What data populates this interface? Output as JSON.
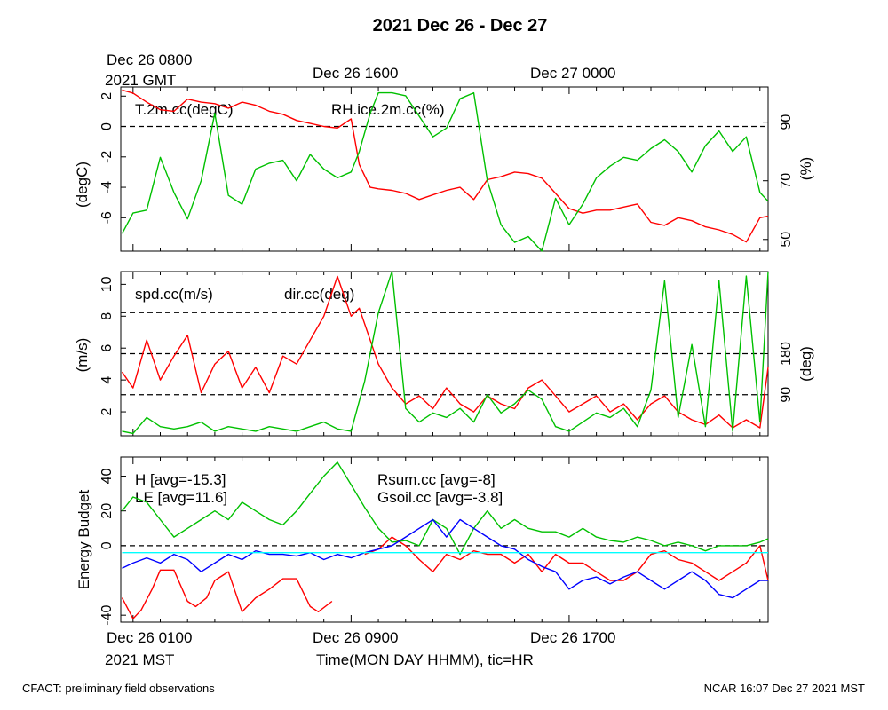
{
  "title": "2021 Dec 26 - Dec 27",
  "top_axis": {
    "labels": [
      "Dec 26 0800",
      "2021 GMT",
      "Dec 26 1600",
      "Dec 27 0000"
    ]
  },
  "bottom_axis": {
    "labels": [
      "Dec 26 0100",
      "2021 MST",
      "Dec 26 0900",
      "Dec 26 1700"
    ],
    "title": "Time(MON DAY HHMM), tic=HR",
    "x_range_hours": [
      0.55,
      24.3
    ]
  },
  "footer": {
    "left": "CFACT: preliminary field observations",
    "right": "NCAR 16:07 Dec 27 2021 MST"
  },
  "colors": {
    "red": "#ff0000",
    "green": "#00c000",
    "blue": "#0000ff",
    "cyan": "#00ffff"
  },
  "chart_data": [
    {
      "type": "line",
      "panel": "temperature-rh",
      "ylabel_left": "(degC)",
      "ylabel_right": "(%)",
      "ylim_left": [
        -8.2,
        2.6
      ],
      "ylim_right": [
        46,
        102
      ],
      "left_ticks": [
        "2",
        "0",
        "-2",
        "-4",
        "-6"
      ],
      "left_tick_values": [
        2,
        0,
        -2,
        -4,
        -6
      ],
      "right_ticks": [
        "90",
        "70",
        "50"
      ],
      "right_tick_values": [
        90,
        70,
        50
      ],
      "ref_line": 0,
      "series": [
        {
          "name": "T.2m.cc(degC)",
          "axis": "left",
          "color": "#ff0000",
          "x": [
            0.6,
            1.0,
            1.5,
            2.0,
            2.5,
            3.0,
            3.5,
            4.0,
            4.5,
            5.0,
            5.5,
            6.0,
            6.5,
            7.0,
            7.5,
            8.0,
            8.5,
            9.0,
            9.3,
            9.7,
            10.0,
            10.5,
            11.0,
            11.5,
            12.0,
            12.5,
            13.0,
            13.5,
            14.0,
            14.5,
            15.0,
            15.5,
            16.0,
            16.5,
            17.0,
            17.5,
            18.0,
            18.5,
            19.0,
            19.5,
            20.0,
            20.5,
            21.0,
            21.5,
            22.0,
            22.5,
            23.0,
            23.5,
            24.0,
            24.3
          ],
          "values": [
            2.4,
            2.2,
            1.6,
            1.1,
            1.0,
            1.8,
            1.6,
            1.5,
            1.2,
            1.6,
            1.4,
            1.0,
            0.8,
            0.4,
            0.2,
            0.0,
            -0.1,
            0.5,
            -2.5,
            -4.0,
            -4.1,
            -4.2,
            -4.4,
            -4.8,
            -4.5,
            -4.2,
            -4.0,
            -4.8,
            -3.5,
            -3.3,
            -3.0,
            -3.1,
            -3.4,
            -4.4,
            -5.4,
            -5.7,
            -5.5,
            -5.5,
            -5.3,
            -5.1,
            -6.3,
            -6.5,
            -6.0,
            -6.2,
            -6.6,
            -6.8,
            -7.1,
            -7.6,
            -6.0,
            -5.9
          ]
        },
        {
          "name": "RH.ice.2m.cc(%)",
          "axis": "right",
          "color": "#00c000",
          "x": [
            0.6,
            1.0,
            1.5,
            2.0,
            2.5,
            3.0,
            3.5,
            4.0,
            4.5,
            5.0,
            5.5,
            6.0,
            6.5,
            7.0,
            7.5,
            8.0,
            8.5,
            9.0,
            9.3,
            9.7,
            10.0,
            10.5,
            11.0,
            11.5,
            12.0,
            12.5,
            13.0,
            13.5,
            14.0,
            14.5,
            15.0,
            15.5,
            16.0,
            16.5,
            17.0,
            17.5,
            18.0,
            18.5,
            19.0,
            19.5,
            20.0,
            20.5,
            21.0,
            21.5,
            22.0,
            22.5,
            23.0,
            23.5,
            24.0,
            24.3
          ],
          "values": [
            52,
            59,
            60,
            78,
            66,
            57,
            70,
            93,
            65,
            62,
            74,
            76,
            77,
            70,
            79,
            74,
            71,
            73,
            80,
            93,
            100,
            100,
            99,
            92,
            85,
            88,
            98,
            100,
            70,
            55,
            49,
            51,
            46,
            64,
            55,
            62,
            71,
            75,
            78,
            77,
            81,
            84,
            80,
            73,
            82,
            87,
            80,
            85,
            66,
            63
          ]
        }
      ]
    },
    {
      "type": "line",
      "panel": "wind",
      "ylabel_left": "(m/s)",
      "ylabel_right": "(deg)",
      "ylim_left": [
        0.5,
        10.8
      ],
      "ylim_right": [
        0,
        360
      ],
      "left_ticks": [
        "10",
        "8",
        "6",
        "4",
        "2"
      ],
      "left_tick_values": [
        10,
        8,
        6,
        4,
        2
      ],
      "right_ticks": [
        "180",
        "90"
      ],
      "right_tick_values": [
        180,
        90
      ],
      "ref_lines_right": [
        90,
        180,
        270
      ],
      "series": [
        {
          "name": "spd.cc(m/s)",
          "axis": "left",
          "color": "#ff0000",
          "x": [
            0.6,
            1.0,
            1.5,
            2.0,
            2.5,
            3.0,
            3.5,
            4.0,
            4.5,
            5.0,
            5.5,
            6.0,
            6.5,
            7.0,
            7.5,
            8.0,
            8.5,
            9.0,
            9.3,
            9.7,
            10.0,
            10.5,
            11.0,
            11.5,
            12.0,
            12.5,
            13.0,
            13.5,
            14.0,
            14.5,
            15.0,
            15.5,
            16.0,
            16.5,
            17.0,
            17.5,
            18.0,
            18.5,
            19.0,
            19.5,
            20.0,
            20.5,
            21.0,
            21.5,
            22.0,
            22.5,
            23.0,
            23.5,
            24.0,
            24.3
          ],
          "values": [
            4.5,
            3.5,
            6.5,
            4.0,
            5.5,
            6.8,
            3.2,
            5.0,
            5.8,
            3.5,
            4.8,
            3.2,
            5.5,
            5.0,
            6.5,
            8.0,
            10.5,
            8.0,
            8.5,
            6.5,
            5.0,
            3.5,
            2.5,
            3.0,
            2.2,
            3.5,
            2.5,
            2.0,
            3.0,
            2.5,
            2.2,
            3.5,
            4.0,
            3.0,
            2.0,
            2.5,
            3.0,
            2.0,
            2.5,
            1.5,
            2.5,
            3.0,
            2.0,
            1.5,
            1.2,
            1.8,
            1.0,
            1.5,
            1.0,
            4.8
          ]
        },
        {
          "name": "dir.cc(deg)",
          "axis": "right",
          "color": "#00c000",
          "x": [
            0.6,
            1.0,
            1.5,
            2.0,
            2.5,
            3.0,
            3.5,
            4.0,
            4.5,
            5.0,
            5.5,
            6.0,
            6.5,
            7.0,
            7.5,
            8.0,
            8.5,
            9.0,
            9.5,
            10.0,
            10.5,
            11.0,
            11.5,
            12.0,
            12.5,
            13.0,
            13.5,
            14.0,
            14.5,
            15.0,
            15.5,
            16.0,
            16.5,
            17.0,
            17.5,
            18.0,
            18.5,
            19.0,
            19.5,
            20.0,
            20.5,
            21.0,
            21.5,
            22.0,
            22.5,
            23.0,
            23.5,
            24.0,
            24.3
          ],
          "values": [
            10,
            5,
            40,
            20,
            15,
            20,
            30,
            10,
            20,
            15,
            10,
            20,
            15,
            10,
            20,
            30,
            15,
            10,
            120,
            270,
            360,
            60,
            30,
            50,
            40,
            60,
            30,
            90,
            50,
            70,
            100,
            80,
            20,
            10,
            30,
            50,
            40,
            60,
            20,
            100,
            340,
            40,
            200,
            20,
            340,
            10,
            350,
            30,
            360
          ]
        }
      ]
    },
    {
      "type": "line",
      "panel": "energy-budget",
      "ylabel_left": "Energy Budget",
      "ylim_left": [
        -44,
        51
      ],
      "left_ticks": [
        "40",
        "20",
        "0",
        "-40"
      ],
      "left_tick_values": [
        40,
        20,
        0,
        -40
      ],
      "ref_line": 0,
      "series": [
        {
          "name": "H",
          "label": "H [avg=-15.3]",
          "color": "#ff0000",
          "x": [
            0.6,
            1.0,
            1.3,
            1.7,
            2.0,
            2.5,
            3.0,
            3.3,
            3.7,
            4.0,
            4.5,
            5.0,
            5.5,
            6.0,
            6.5,
            7.0,
            7.5,
            7.8,
            8.3,
            9.0,
            9.5,
            10.0,
            10.5,
            11.0,
            11.5,
            12.0,
            12.5,
            13.0,
            13.5,
            14.0,
            14.5,
            15.0,
            15.5,
            16.0,
            16.5,
            17.0,
            17.5,
            18.0,
            18.5,
            19.0,
            19.5,
            20.0,
            20.5,
            21.0,
            21.5,
            22.0,
            22.5,
            23.0,
            23.5,
            24.0,
            24.3
          ],
          "values": [
            -30,
            -42,
            -37,
            -25,
            -14,
            -14,
            -32,
            -35,
            -30,
            -20,
            -15,
            -38,
            -30,
            -25,
            -19,
            -19,
            -35,
            -38,
            -32,
            null,
            -5,
            -2,
            5,
            0,
            -8,
            -15,
            -5,
            -8,
            -3,
            -5,
            -5,
            -10,
            -5,
            -15,
            -5,
            -10,
            -10,
            -15,
            -20,
            -20,
            -15,
            -5,
            -3,
            -8,
            -10,
            -15,
            -20,
            -15,
            -10,
            0,
            -20
          ]
        },
        {
          "name": "LE",
          "label": "LE [avg=11.6]",
          "color": "#00c000",
          "x": [
            0.6,
            1.0,
            1.5,
            2.0,
            2.5,
            3.0,
            3.5,
            4.0,
            4.5,
            5.0,
            5.5,
            6.0,
            6.5,
            7.0,
            7.5,
            8.0,
            8.5,
            9.0,
            9.5,
            10.0,
            10.5,
            11.0,
            11.5,
            12.0,
            12.5,
            13.0,
            13.5,
            14.0,
            14.5,
            15.0,
            15.5,
            16.0,
            16.5,
            17.0,
            17.5,
            18.0,
            18.5,
            19.0,
            19.5,
            20.0,
            20.5,
            21.0,
            21.5,
            22.0,
            22.5,
            23.0,
            23.5,
            24.0,
            24.3
          ],
          "values": [
            20,
            28,
            25,
            15,
            5,
            10,
            15,
            20,
            15,
            25,
            20,
            15,
            12,
            20,
            30,
            40,
            48,
            35,
            22,
            10,
            2,
            3,
            0,
            15,
            10,
            -5,
            10,
            20,
            10,
            15,
            10,
            8,
            8,
            5,
            10,
            5,
            3,
            2,
            5,
            3,
            0,
            2,
            0,
            -3,
            0,
            0,
            0,
            2,
            4
          ]
        },
        {
          "name": "Rsum.cc",
          "label": "Rsum.cc [avg=-8]",
          "color": "#0000ff",
          "x": [
            0.6,
            1.0,
            1.5,
            2.0,
            2.5,
            3.0,
            3.5,
            4.0,
            4.5,
            5.0,
            5.5,
            6.0,
            6.5,
            7.0,
            7.5,
            8.0,
            8.5,
            9.0,
            9.5,
            10.0,
            10.5,
            11.0,
            11.5,
            12.0,
            12.5,
            13.0,
            13.5,
            14.0,
            14.5,
            15.0,
            15.5,
            16.0,
            16.5,
            17.0,
            17.5,
            18.0,
            18.5,
            19.0,
            19.5,
            20.0,
            20.5,
            21.0,
            21.5,
            22.0,
            22.5,
            23.0,
            23.5,
            24.0,
            24.3
          ],
          "values": [
            -13,
            -10,
            -7,
            -10,
            -5,
            -8,
            -15,
            -10,
            -5,
            -8,
            -3,
            -5,
            -5,
            -6,
            -4,
            -8,
            -5,
            -7,
            -4,
            -2,
            0,
            5,
            10,
            15,
            5,
            15,
            10,
            5,
            0,
            -2,
            -8,
            -12,
            -15,
            -25,
            -20,
            -18,
            -22,
            -18,
            -15,
            -20,
            -25,
            -20,
            -15,
            -20,
            -28,
            -30,
            -25,
            -20,
            -20
          ]
        },
        {
          "name": "Gsoil.cc",
          "label": "Gsoil.cc [avg=-3.8]",
          "color": "#00ffff",
          "x": [
            0.6,
            24.3
          ],
          "values": [
            -4,
            -4
          ]
        }
      ]
    }
  ]
}
